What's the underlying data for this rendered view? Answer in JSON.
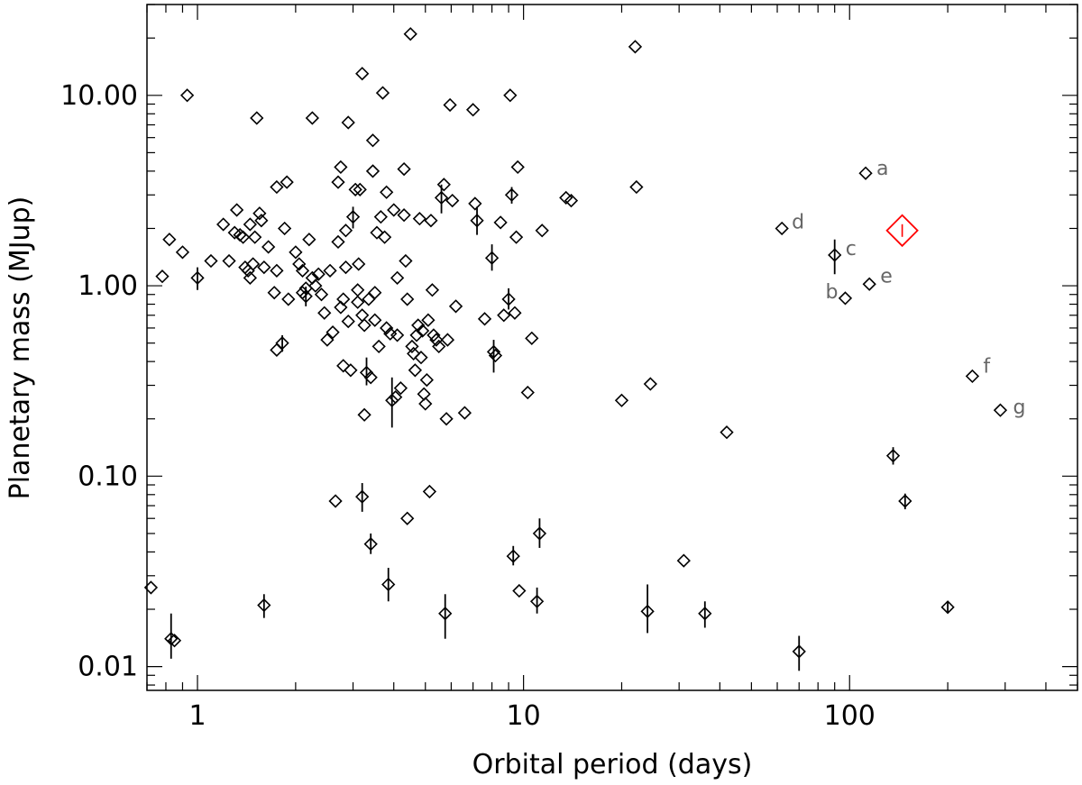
{
  "chart_data": {
    "type": "scatter",
    "xlabel": "Orbital period (days)",
    "ylabel": "Planetary mass (MJup)",
    "x_scale": "log",
    "y_scale": "log",
    "xlim": [
      0.7,
      500
    ],
    "ylim": [
      0.0075,
      30
    ],
    "x_ticks": [
      {
        "value": 1,
        "label": "1"
      },
      {
        "value": 10,
        "label": "10"
      },
      {
        "value": 100,
        "label": "100"
      }
    ],
    "y_ticks": [
      {
        "value": 0.01,
        "label": "0.01"
      },
      {
        "value": 0.1,
        "label": "0.10"
      },
      {
        "value": 1,
        "label": "1.00"
      },
      {
        "value": 10,
        "label": "10.00"
      }
    ],
    "grid": false,
    "series": [
      {
        "color": "#000000",
        "marker": "diamond",
        "points": [
          [
            0.72,
            0.026,
            0,
            0
          ],
          [
            0.78,
            1.12,
            0,
            0
          ],
          [
            0.82,
            1.75,
            0,
            0
          ],
          [
            0.83,
            0.014,
            0.011,
            0.019
          ],
          [
            0.85,
            0.0137,
            0,
            0
          ],
          [
            0.9,
            1.5,
            0,
            0
          ],
          [
            0.93,
            10.0,
            0,
            0
          ],
          [
            1.0,
            1.1,
            0.95,
            1.25
          ],
          [
            1.1,
            1.35,
            0,
            0
          ],
          [
            1.2,
            2.1,
            0,
            0
          ],
          [
            1.25,
            1.35,
            0,
            0
          ],
          [
            1.3,
            1.9,
            0,
            0
          ],
          [
            1.32,
            2.5,
            0,
            0
          ],
          [
            1.35,
            1.85,
            0,
            0
          ],
          [
            1.38,
            1.8,
            0,
            0
          ],
          [
            1.4,
            1.25,
            0,
            0
          ],
          [
            1.43,
            1.2,
            0,
            0
          ],
          [
            1.45,
            2.1,
            0,
            0
          ],
          [
            1.45,
            1.1,
            0,
            0
          ],
          [
            1.48,
            1.3,
            0,
            0
          ],
          [
            1.5,
            1.8,
            0,
            0
          ],
          [
            1.52,
            7.6,
            0,
            0
          ],
          [
            1.55,
            2.4,
            0,
            0
          ],
          [
            1.57,
            2.2,
            0,
            0
          ],
          [
            1.6,
            0.021,
            0.018,
            0.024
          ],
          [
            1.6,
            1.25,
            0,
            0
          ],
          [
            1.65,
            1.6,
            0,
            0
          ],
          [
            1.72,
            0.92,
            0,
            0
          ],
          [
            1.75,
            1.2,
            0,
            0
          ],
          [
            1.75,
            3.3,
            0,
            0
          ],
          [
            1.75,
            0.46,
            0,
            0
          ],
          [
            1.82,
            0.5,
            0.45,
            0.55
          ],
          [
            1.85,
            2.0,
            0,
            0
          ],
          [
            1.88,
            3.5,
            0,
            0
          ],
          [
            1.9,
            0.85,
            0,
            0
          ],
          [
            2.0,
            1.5,
            0,
            0
          ],
          [
            2.05,
            1.3,
            0,
            0
          ],
          [
            2.1,
            1.2,
            0,
            0
          ],
          [
            2.1,
            0.92,
            0,
            0
          ],
          [
            2.15,
            0.88,
            0.78,
            0.99
          ],
          [
            2.15,
            0.97,
            0,
            0
          ],
          [
            2.2,
            1.75,
            0,
            0
          ],
          [
            2.25,
            7.6,
            0,
            0
          ],
          [
            2.25,
            1.1,
            0,
            0
          ],
          [
            2.3,
            1.0,
            0,
            0
          ],
          [
            2.35,
            1.15,
            0,
            0
          ],
          [
            2.4,
            0.9,
            0,
            0
          ],
          [
            2.45,
            0.72,
            0,
            0
          ],
          [
            2.5,
            0.52,
            0,
            0
          ],
          [
            2.55,
            1.2,
            0,
            0
          ],
          [
            2.6,
            0.57,
            0,
            0
          ],
          [
            2.65,
            0.074,
            0,
            0
          ],
          [
            2.7,
            1.7,
            0,
            0
          ],
          [
            2.7,
            3.5,
            0,
            0
          ],
          [
            2.75,
            4.2,
            0,
            0
          ],
          [
            2.75,
            0.77,
            0,
            0
          ],
          [
            2.8,
            0.85,
            0,
            0
          ],
          [
            2.8,
            0.38,
            0,
            0
          ],
          [
            2.85,
            1.95,
            0,
            0
          ],
          [
            2.85,
            1.25,
            0,
            0
          ],
          [
            2.9,
            7.2,
            0,
            0
          ],
          [
            2.9,
            0.65,
            0,
            0
          ],
          [
            2.95,
            0.36,
            0,
            0
          ],
          [
            3.0,
            2.3,
            2.0,
            2.6
          ],
          [
            3.05,
            3.2,
            0,
            0
          ],
          [
            3.1,
            0.95,
            0,
            0
          ],
          [
            3.1,
            0.82,
            0,
            0
          ],
          [
            3.12,
            1.3,
            0,
            0
          ],
          [
            3.15,
            3.2,
            0,
            0
          ],
          [
            3.2,
            0.7,
            0,
            0
          ],
          [
            3.2,
            13.0,
            0,
            0
          ],
          [
            3.2,
            0.078,
            0.065,
            0.092
          ],
          [
            3.25,
            0.21,
            0,
            0
          ],
          [
            3.25,
            0.62,
            0,
            0
          ],
          [
            3.3,
            0.35,
            0.3,
            0.42
          ],
          [
            3.35,
            0.85,
            0,
            0
          ],
          [
            3.4,
            0.044,
            0.039,
            0.05
          ],
          [
            3.4,
            0.33,
            0,
            0
          ],
          [
            3.45,
            5.8,
            0,
            0
          ],
          [
            3.45,
            4.0,
            0,
            0
          ],
          [
            3.5,
            0.92,
            0,
            0
          ],
          [
            3.5,
            0.66,
            0,
            0
          ],
          [
            3.55,
            1.9,
            0,
            0
          ],
          [
            3.6,
            0.48,
            0,
            0
          ],
          [
            3.65,
            2.3,
            0,
            0
          ],
          [
            3.7,
            10.3,
            0,
            0
          ],
          [
            3.75,
            1.8,
            0,
            0
          ],
          [
            3.8,
            0.6,
            0,
            0
          ],
          [
            3.8,
            3.1,
            0,
            0
          ],
          [
            3.85,
            0.027,
            0.022,
            0.033
          ],
          [
            3.9,
            0.56,
            0,
            0
          ],
          [
            3.95,
            0.25,
            0.18,
            0.33
          ],
          [
            4.0,
            2.5,
            0,
            0
          ],
          [
            4.05,
            0.26,
            0,
            0
          ],
          [
            4.1,
            1.1,
            0,
            0
          ],
          [
            4.1,
            0.55,
            0,
            0
          ],
          [
            4.2,
            0.29,
            0,
            0
          ],
          [
            4.3,
            2.35,
            0,
            0
          ],
          [
            4.3,
            4.1,
            0,
            0
          ],
          [
            4.35,
            1.35,
            0,
            0
          ],
          [
            4.4,
            0.06,
            0,
            0
          ],
          [
            4.4,
            0.85,
            0,
            0
          ],
          [
            4.5,
            21.0,
            0,
            0
          ],
          [
            4.55,
            0.48,
            0,
            0
          ],
          [
            4.6,
            0.44,
            0,
            0
          ],
          [
            4.65,
            0.36,
            0,
            0
          ],
          [
            4.7,
            0.55,
            0,
            0
          ],
          [
            4.75,
            0.62,
            0,
            0
          ],
          [
            4.8,
            2.25,
            0,
            0
          ],
          [
            4.85,
            0.42,
            0,
            0
          ],
          [
            4.9,
            0.58,
            0,
            0
          ],
          [
            4.95,
            0.27,
            0,
            0
          ],
          [
            5.0,
            0.24,
            0,
            0
          ],
          [
            5.05,
            0.32,
            0,
            0
          ],
          [
            5.1,
            0.66,
            0,
            0
          ],
          [
            5.15,
            0.083,
            0,
            0
          ],
          [
            5.2,
            2.2,
            0,
            0
          ],
          [
            5.25,
            0.95,
            0,
            0
          ],
          [
            5.3,
            0.55,
            0,
            0
          ],
          [
            5.4,
            0.52,
            0,
            0
          ],
          [
            5.5,
            0.48,
            0,
            0
          ],
          [
            5.6,
            2.9,
            2.4,
            3.4
          ],
          [
            5.7,
            3.4,
            0,
            0
          ],
          [
            5.75,
            0.019,
            0.014,
            0.024
          ],
          [
            5.8,
            0.2,
            0,
            0
          ],
          [
            5.85,
            0.52,
            0,
            0
          ],
          [
            5.95,
            8.9,
            0,
            0
          ],
          [
            6.05,
            2.8,
            0,
            0
          ],
          [
            6.2,
            0.78,
            0,
            0
          ],
          [
            6.6,
            0.215,
            0,
            0
          ],
          [
            7.0,
            8.4,
            0,
            0
          ],
          [
            7.1,
            2.7,
            0,
            0
          ],
          [
            7.2,
            2.2,
            1.85,
            2.6
          ],
          [
            7.6,
            0.67,
            0,
            0
          ],
          [
            8.0,
            1.4,
            1.2,
            1.65
          ],
          [
            8.1,
            0.45,
            0.35,
            0.52
          ],
          [
            8.2,
            0.43,
            0,
            0
          ],
          [
            8.5,
            2.15,
            0,
            0
          ],
          [
            8.7,
            0.7,
            0,
            0
          ],
          [
            9.0,
            0.85,
            0.75,
            0.97
          ],
          [
            9.1,
            10.0,
            0,
            0
          ],
          [
            9.2,
            3.0,
            2.7,
            3.3
          ],
          [
            9.3,
            0.038,
            0.034,
            0.043
          ],
          [
            9.4,
            0.72,
            0,
            0
          ],
          [
            9.5,
            1.8,
            0,
            0
          ],
          [
            9.6,
            4.2,
            0,
            0
          ],
          [
            9.7,
            0.025,
            0,
            0
          ],
          [
            10.6,
            0.53,
            0,
            0
          ],
          [
            11.0,
            0.022,
            0.019,
            0.026
          ],
          [
            11.2,
            0.05,
            0.042,
            0.06
          ],
          [
            11.4,
            1.95,
            0,
            0
          ],
          [
            13.5,
            2.9,
            0,
            0
          ],
          [
            14.0,
            2.8,
            0,
            0
          ],
          [
            10.3,
            0.275,
            0,
            0
          ],
          [
            20.0,
            0.25,
            0,
            0
          ],
          [
            22.0,
            18.0,
            0,
            0
          ],
          [
            22.2,
            3.3,
            0,
            0
          ],
          [
            24.0,
            0.0195,
            0.015,
            0.027
          ],
          [
            24.5,
            0.305,
            0,
            0
          ],
          [
            31.0,
            0.036,
            0,
            0
          ],
          [
            36.0,
            0.019,
            0.016,
            0.022
          ],
          [
            42.0,
            0.17,
            0,
            0
          ],
          [
            62.0,
            2.0,
            0,
            0
          ],
          [
            70.0,
            0.012,
            0.0095,
            0.0145
          ],
          [
            90.0,
            1.45,
            1.15,
            1.75
          ],
          [
            97.0,
            0.86,
            0,
            0
          ],
          [
            112.0,
            3.9,
            0,
            0
          ],
          [
            115.0,
            1.02,
            0,
            0
          ],
          [
            136.0,
            0.128,
            0.115,
            0.142
          ],
          [
            148.0,
            0.074,
            0.067,
            0.081
          ],
          [
            200.0,
            0.0205,
            0.0192,
            0.0218
          ],
          [
            238.0,
            0.335,
            0,
            0
          ],
          [
            290.0,
            0.222,
            0,
            0
          ]
        ]
      },
      {
        "color": "#ff0000",
        "marker": "diamond-large",
        "points": [
          [
            145.0,
            1.95,
            0,
            0
          ]
        ]
      }
    ],
    "annotations": [
      {
        "text": "a",
        "x": 112.0,
        "y": 3.9
      },
      {
        "text": "b",
        "x": 97.0,
        "y": 0.86
      },
      {
        "text": "c",
        "x": 90.0,
        "y": 1.45
      },
      {
        "text": "d",
        "x": 62.0,
        "y": 2.0
      },
      {
        "text": "e",
        "x": 115.0,
        "y": 1.02
      },
      {
        "text": "f",
        "x": 238.0,
        "y": 0.335
      },
      {
        "text": "g",
        "x": 290.0,
        "y": 0.222
      }
    ]
  }
}
